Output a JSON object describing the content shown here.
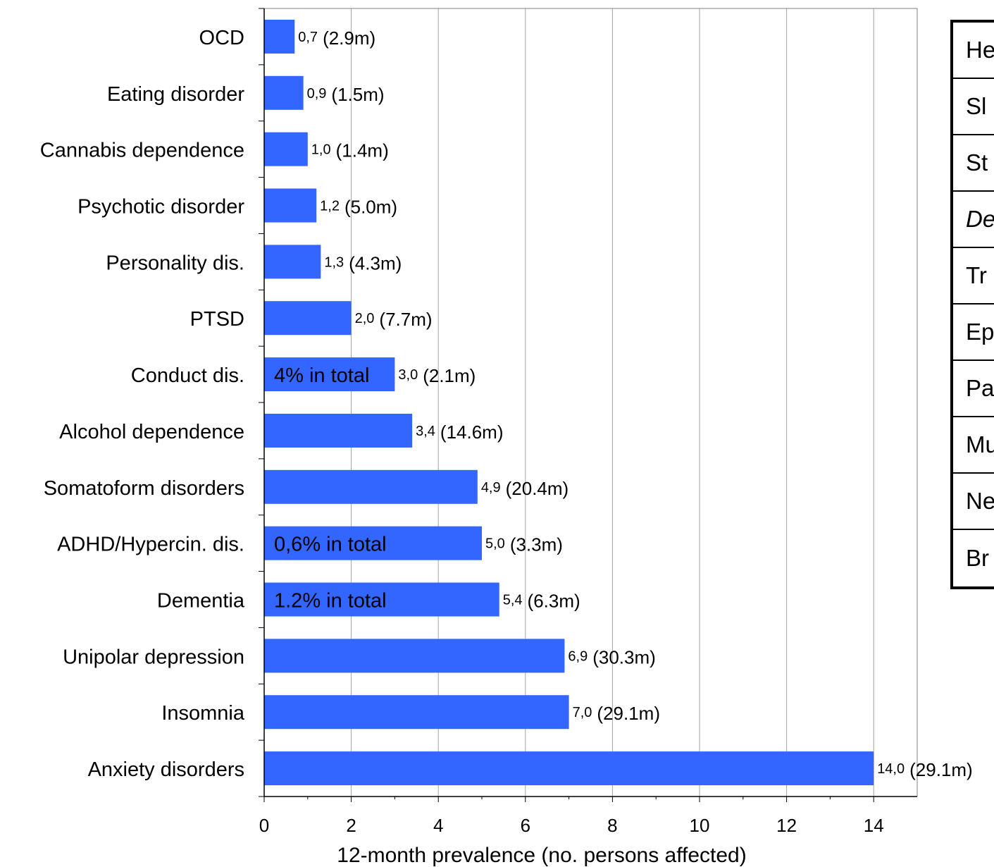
{
  "chart_data": {
    "type": "bar",
    "orientation": "horizontal",
    "xlabel": "12-month prevalence (no. persons affected)",
    "xlim": [
      0,
      15
    ],
    "xticks": [
      0,
      2,
      4,
      6,
      8,
      10,
      12,
      14
    ],
    "grid": "vertical",
    "bar_color": "#3366ff",
    "categories": [
      "OCD",
      "Eating disorder",
      "Cannabis dependence",
      "Psychotic disorder",
      "Personality dis.",
      "PTSD",
      "Conduct dis.",
      "Alcohol dependence",
      "Somatoform disorders",
      "ADHD/Hypercin. dis.",
      "Dementia",
      "Unipolar depression",
      "Insomnia",
      "Anxiety disorders"
    ],
    "values": [
      0.7,
      0.9,
      1.0,
      1.2,
      1.3,
      2.0,
      3.0,
      3.4,
      4.9,
      5.0,
      5.4,
      6.9,
      7.0,
      14.0
    ],
    "value_labels": [
      "0,7",
      "0,9",
      "1,0",
      "1,2",
      "1,3",
      "2,0",
      "3,0",
      "3,4",
      "4,9",
      "5,0",
      "5,4",
      "6,9",
      "7,0",
      "14,0"
    ],
    "persons_affected": [
      "(2.9m)",
      "(1.5m)",
      "(1.4m)",
      "(5.0m)",
      "(4.3m)",
      "(7.7m)",
      "(2.1m)",
      "(14.6m)",
      "(20.4m)",
      "(3.3m)",
      "(6.3m)",
      "(30.3m)",
      "(29.1m)",
      "(29.1m)"
    ],
    "in_bar_notes": [
      "",
      "",
      "",
      "",
      "",
      "",
      "4% in total",
      "",
      "",
      "0,6% in total",
      "1.2% in total",
      "",
      "",
      ""
    ]
  },
  "side_table": {
    "rows": [
      {
        "text": "He",
        "italic": false
      },
      {
        "text": "Sl",
        "italic": false
      },
      {
        "text": "St",
        "italic": false
      },
      {
        "text": "De",
        "italic": true
      },
      {
        "text": "Tr",
        "italic": false
      },
      {
        "text": "Ep",
        "italic": false
      },
      {
        "text": "Pa",
        "italic": false
      },
      {
        "text": "Mu",
        "italic": false
      },
      {
        "text": "Ne",
        "italic": false
      },
      {
        "text": "Br",
        "italic": false
      }
    ]
  }
}
